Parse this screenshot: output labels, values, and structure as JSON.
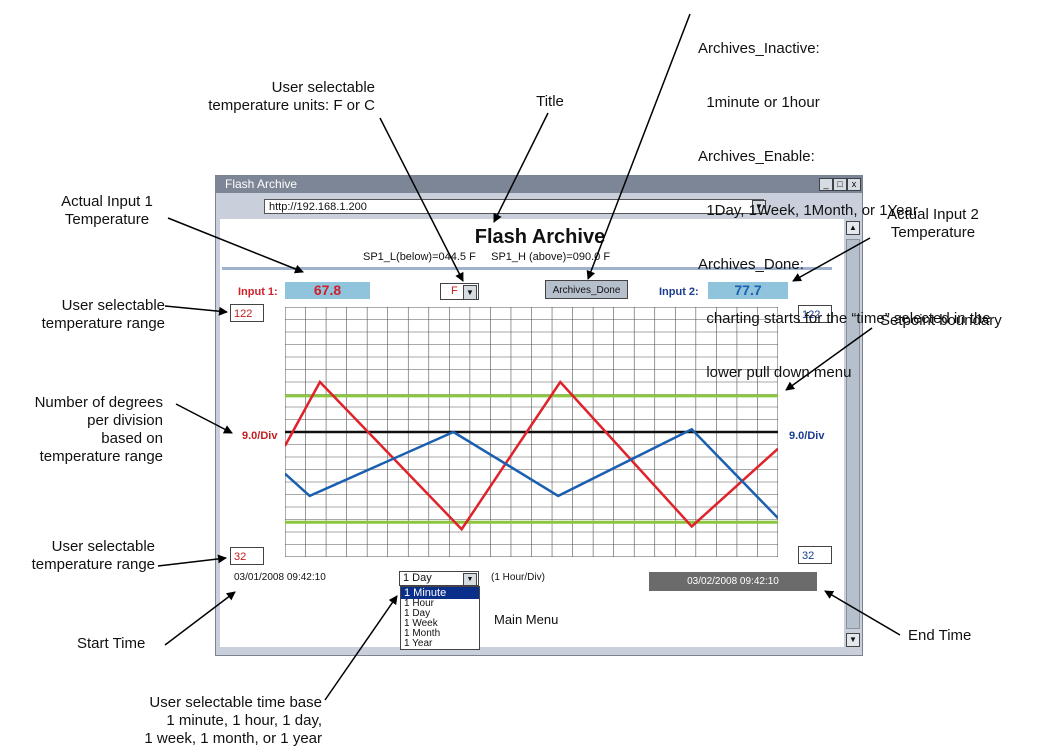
{
  "annotations": {
    "title": "Title",
    "units": [
      "User selectable",
      "temperature units: F or C"
    ],
    "archives": [
      "Archives_Inactive:",
      "  1minute or 1hour",
      "Archives_Enable:",
      "  1Day, 1Week, 1Month, or 1Year",
      "Archives_Done:",
      "  charting starts for the “time” selected in the",
      "  lower pull down menu"
    ],
    "input1": [
      "Actual Input 1",
      "Temperature"
    ],
    "input2": [
      "Actual Input 2",
      "Temperature"
    ],
    "range_top": [
      "User selectable",
      "temperature range"
    ],
    "setpoint": "Setpoint boundary",
    "degrees": [
      "Number of degrees",
      "per division",
      "based on",
      "temperature range"
    ],
    "range_bottom": [
      "User selectable",
      "temperature range"
    ],
    "start_time": "Start Time",
    "end_time": "End Time",
    "time_base": [
      "User selectable time base",
      "1 minute, 1 hour, 1 day,",
      "1 week, 1 month, or 1 year"
    ]
  },
  "window": {
    "title": "Flash Archive",
    "url": "http://192.168.1.200",
    "controls": [
      "_",
      "□",
      "x"
    ]
  },
  "page": {
    "heading": "Flash Archive",
    "setpoints": "SP1_L(below)=044.5 F     SP1_H (above)=090.0 F",
    "input1_label": "Input 1:",
    "input1_value": "67.8",
    "unit_select": "F",
    "archives_button": "Archives_Done",
    "input2_label": "Input 2:",
    "input2_value": "77.7",
    "range_top_left": "122",
    "range_top_right": "122",
    "range_bottom_left": "32",
    "range_bottom_right": "32",
    "div_left": "9.0/Div",
    "div_right": "9.0/Div",
    "start_time": "03/01/2008  09:42:10",
    "end_time": "03/02/2008  09:42:10",
    "time_select": "1 Day",
    "time_per_div": "(1 Hour/Div)",
    "time_options": [
      "1 Minute",
      "1 Hour",
      "1 Day",
      "1 Week",
      "1 Month",
      "1 Year"
    ],
    "main_menu": "Main Menu"
  },
  "colors": {
    "input1": "#e0222b",
    "input2": "#1a5fb0",
    "setpoint": "#8cc63f",
    "value_box": "#8fc4dc",
    "end_time_bg": "#6b6b6b"
  },
  "chart_data": {
    "type": "line",
    "xlim": [
      0,
      24
    ],
    "ylim": [
      32,
      122
    ],
    "grid": true,
    "setpoints": [
      44.5,
      90.0
    ],
    "midline": 77,
    "series": [
      {
        "color": "#e0222b",
        "x": [
          0,
          1.7,
          8.6,
          13.4,
          19.8,
          24
        ],
        "y": [
          72,
          95,
          42,
          95,
          43,
          71
        ]
      },
      {
        "color": "#1a5fb0",
        "x": [
          0,
          1.2,
          8.2,
          13.3,
          19.8,
          24
        ],
        "y": [
          62,
          54,
          77,
          54,
          78,
          46
        ]
      }
    ]
  }
}
